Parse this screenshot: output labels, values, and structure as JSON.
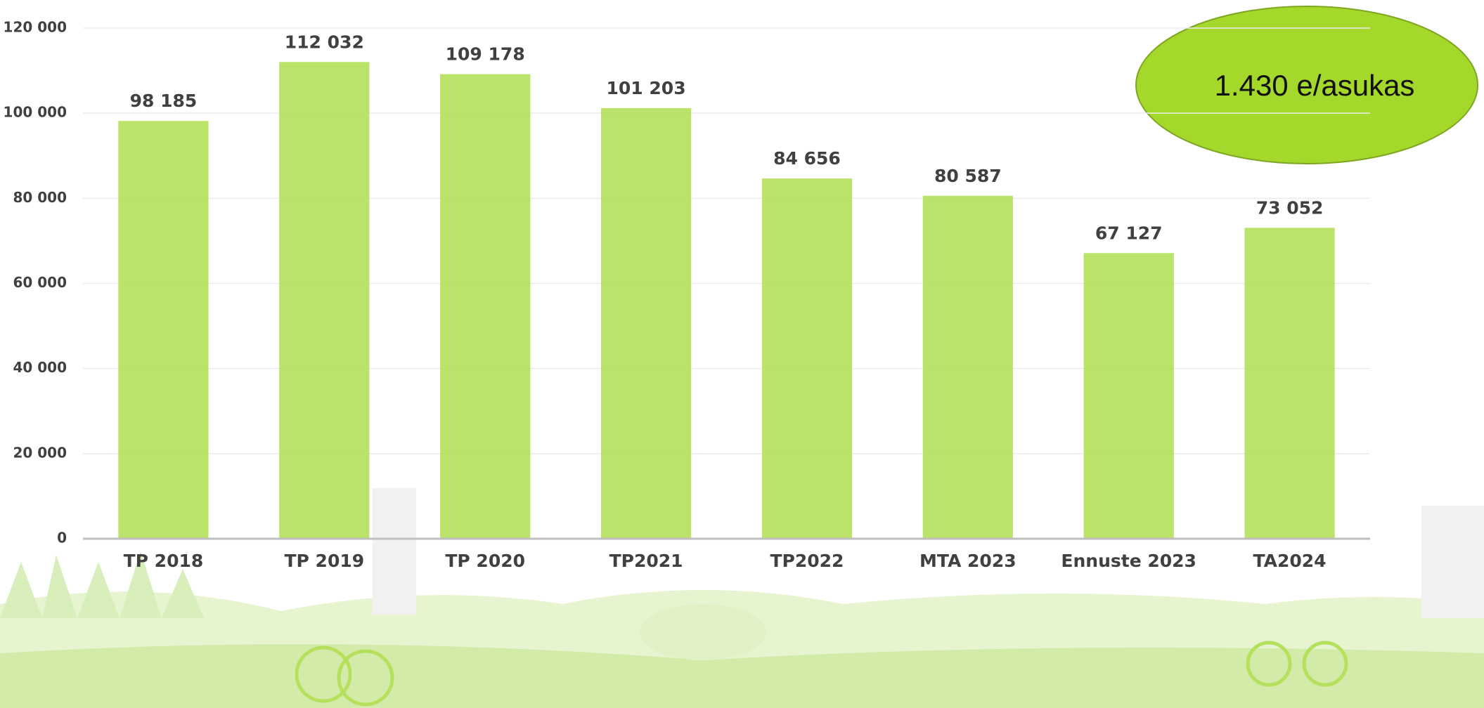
{
  "chart_data": {
    "type": "bar",
    "categories": [
      "TP 2018",
      "TP 2019",
      "TP 2020",
      "TP2021",
      "TP2022",
      "MTA 2023",
      "Ennuste 2023",
      "TA2024"
    ],
    "values": [
      98185,
      112032,
      109178,
      101203,
      84656,
      80587,
      67127,
      73052
    ],
    "value_labels": [
      "98 185",
      "112 032",
      "109 178",
      "101 203",
      "84 656",
      "80 587",
      "67 127",
      "73 052"
    ],
    "color": "#b5e05c",
    "ylim": [
      0,
      120000
    ],
    "yticks": [
      0,
      {
        "value": 20000,
        "label": "20 000"
      },
      {
        "value": 40000,
        "label": "40 000"
      },
      {
        "value": 60000,
        "label": "60 000"
      },
      {
        "value": 80000,
        "label": "80 000"
      },
      {
        "value": 100000,
        "label": "100 000"
      },
      {
        "value": 120000,
        "label": "120 000"
      }
    ],
    "grid": true,
    "annotation": "1.430 e/asukas"
  }
}
